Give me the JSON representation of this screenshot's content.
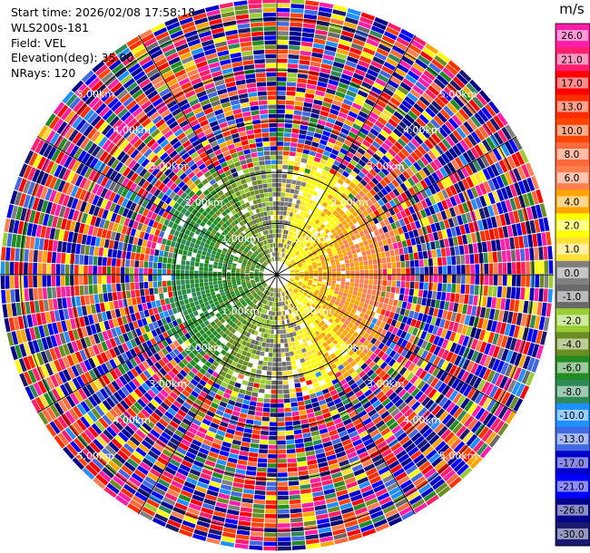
{
  "chart_data": {
    "type": "ppi",
    "info": {
      "start_time_label": "Start time: 2026/02/08 17:58:18",
      "site": "WLS200s-181",
      "field_label": "Field: VEL",
      "elevation_label": "Elevation(deg): 35.00",
      "nrays_label": "NRays: 120"
    },
    "nrays": 120,
    "max_range_km": 5.4,
    "range_rings_km": [
      1.0,
      2.0,
      3.0,
      4.0,
      5.0
    ],
    "ring_labels": [
      "1.00km",
      "2.00km",
      "3.00km",
      "4.00km",
      "5.00km"
    ],
    "spoke_angles_deg": [
      0,
      30,
      60,
      90,
      120,
      150,
      180,
      210,
      240,
      270,
      300,
      330
    ],
    "colorbar": {
      "unit": "m/s",
      "tick_labels": [
        "26.0",
        "21.0",
        "17.0",
        "13.0",
        "10.0",
        "8.0",
        "6.0",
        "4.0",
        "2.0",
        "1.0",
        "0.0",
        "-1.0",
        "-2.0",
        "-4.0",
        "-6.0",
        "-8.0",
        "-10.0",
        "-13.0",
        "-17.0",
        "-21.0",
        "-26.0",
        "-30.0"
      ],
      "tick_values": [
        26,
        21,
        17,
        13,
        10,
        8,
        6,
        4,
        2,
        1,
        0,
        -1,
        -2,
        -4,
        -6,
        -8,
        -10,
        -13,
        -17,
        -21,
        -26,
        -30
      ],
      "bins": [
        {
          "min": 26,
          "max": 30,
          "color": "#ff1ea8"
        },
        {
          "min": 21,
          "max": 26,
          "color": "#ff1e6e"
        },
        {
          "min": 17,
          "max": 21,
          "color": "#ff0000"
        },
        {
          "min": 13,
          "max": 17,
          "color": "#ff2d00"
        },
        {
          "min": 10,
          "max": 13,
          "color": "#ff4500"
        },
        {
          "min": 8,
          "max": 10,
          "color": "#ff6a3d"
        },
        {
          "min": 6,
          "max": 8,
          "color": "#ff7f50"
        },
        {
          "min": 4,
          "max": 6,
          "color": "#ffa500"
        },
        {
          "min": 2,
          "max": 4,
          "color": "#ffff00"
        },
        {
          "min": 1,
          "max": 2,
          "color": "#ffe135"
        },
        {
          "min": 0,
          "max": 1,
          "color": "#808080"
        },
        {
          "min": -1,
          "max": 0,
          "color": "#696969"
        },
        {
          "min": -2,
          "max": -1,
          "color": "#9acd32"
        },
        {
          "min": -4,
          "max": -2,
          "color": "#6b8e23"
        },
        {
          "min": -6,
          "max": -4,
          "color": "#228b22"
        },
        {
          "min": -8,
          "max": -6,
          "color": "#2e8b57"
        },
        {
          "min": -10,
          "max": -8,
          "color": "#1e90ff"
        },
        {
          "min": -13,
          "max": -10,
          "color": "#4169e1"
        },
        {
          "min": -17,
          "max": -13,
          "color": "#0000cd"
        },
        {
          "min": -21,
          "max": -17,
          "color": "#0000ff"
        },
        {
          "min": -26,
          "max": -21,
          "color": "#00008b"
        },
        {
          "min": -30,
          "max": -26,
          "color": "#191970"
        }
      ]
    },
    "field_summary": {
      "near_field_range_km": 2.4,
      "near_field_pattern": "negative velocities (green/blue) on west half, positive (orange/yellow) on east half",
      "far_field_pattern": "noisy mixed velocities across full colormap"
    }
  }
}
